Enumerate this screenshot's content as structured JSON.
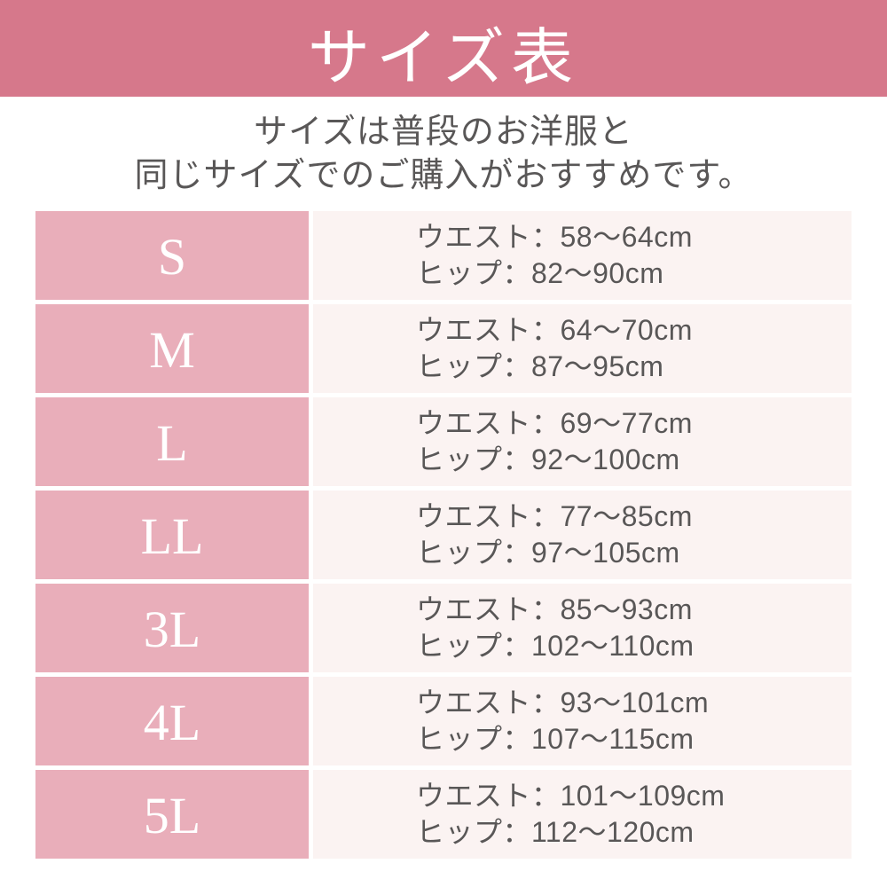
{
  "header": {
    "title": "サイズ表",
    "bg_color": "#d6788b",
    "text_color": "#ffffff"
  },
  "intro": {
    "line1": "サイズは普段のお洋服と",
    "line2": "同じサイズでのご購入がおすすめです。",
    "text_color": "#595757"
  },
  "colors": {
    "size_cell_bg": "#e9aeba",
    "detail_cell_bg": "#fbf3f2",
    "body_text": "#595757",
    "background": "#ffffff"
  },
  "size_table": {
    "rows": [
      {
        "size": "S",
        "waist": "ウエスト：58～64cm",
        "hip": "ヒップ：82～90cm"
      },
      {
        "size": "M",
        "waist": "ウエスト：64～70cm",
        "hip": "ヒップ：87～95cm"
      },
      {
        "size": "L",
        "waist": "ウエスト：69～77cm",
        "hip": "ヒップ：92～100cm"
      },
      {
        "size": "LL",
        "waist": "ウエスト：77～85cm",
        "hip": "ヒップ：97～105cm"
      },
      {
        "size": "3L",
        "waist": "ウエスト：85～93cm",
        "hip": "ヒップ：102～110cm"
      },
      {
        "size": "4L",
        "waist": "ウエスト：93～101cm",
        "hip": "ヒップ：107～115cm"
      },
      {
        "size": "5L",
        "waist": "ウエスト：101～109cm",
        "hip": "ヒップ：112～120cm"
      }
    ]
  },
  "chart_data": {
    "type": "table",
    "title": "サイズ表",
    "note": "サイズは普段のお洋服と同じサイズでのご購入がおすすめです。",
    "columns": [
      "size",
      "waist_cm",
      "hip_cm"
    ],
    "rows": [
      [
        "S",
        "58～64",
        "82～90"
      ],
      [
        "M",
        "64～70",
        "87～95"
      ],
      [
        "L",
        "69～77",
        "92～100"
      ],
      [
        "LL",
        "77～85",
        "97～105"
      ],
      [
        "3L",
        "85～93",
        "102～110"
      ],
      [
        "4L",
        "93～101",
        "107～115"
      ],
      [
        "5L",
        "101～109",
        "112～120"
      ]
    ]
  }
}
